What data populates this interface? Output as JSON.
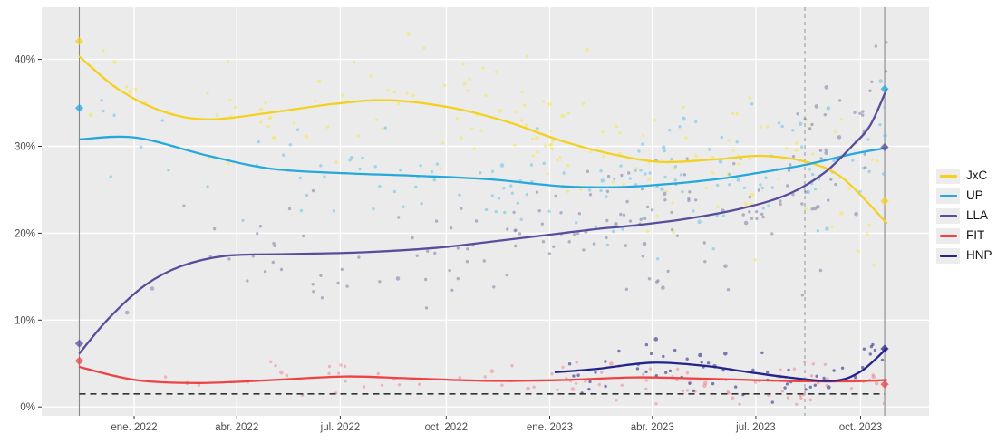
{
  "figure": {
    "background": "#ffffff",
    "panel_background": "#ebebeb",
    "gridline_color": "#ffffff",
    "axis_text_color": "#4d4d4d",
    "tick_color": "#333333"
  },
  "chart_data": {
    "type": "scatter",
    "title": "",
    "xlabel": "",
    "ylabel": "",
    "grid": true,
    "legend_position": "right",
    "x_axis": {
      "scale": "time (decimal year)",
      "range_years": [
        2021.79,
        2023.91
      ],
      "ticks": [
        {
          "label": "ene. 2022",
          "year": 2022.0
        },
        {
          "label": "abr. 2022",
          "year": 2022.247
        },
        {
          "label": "jul. 2022",
          "year": 2022.496
        },
        {
          "label": "oct. 2022",
          "year": 2022.751
        },
        {
          "label": "ene. 2023",
          "year": 2023.0
        },
        {
          "label": "abr. 2023",
          "year": 2023.247
        },
        {
          "label": "jul. 2023",
          "year": 2023.496
        },
        {
          "label": "oct. 2023",
          "year": 2023.748
        }
      ]
    },
    "y_axis": {
      "unit": "%",
      "range": [
        -1.0,
        46.0
      ],
      "ticks": [
        {
          "label": "0%",
          "value": 0
        },
        {
          "label": "10%",
          "value": 10
        },
        {
          "label": "20%",
          "value": 20
        },
        {
          "label": "30%",
          "value": 30
        },
        {
          "label": "40%",
          "value": 40
        }
      ]
    },
    "reference_lines": {
      "vertical": [
        {
          "year": 2021.868,
          "style": "solid",
          "color": "#8a8a8a"
        },
        {
          "year": 2023.614,
          "style": "dashed",
          "color": "#9e9e9e"
        },
        {
          "year": 2023.806,
          "style": "solid",
          "color": "#8a8a8a"
        }
      ],
      "horizontal": [
        {
          "value": 1.5,
          "style": "dashed",
          "color": "#333333"
        }
      ]
    },
    "series": [
      {
        "name": "JxC",
        "line_color": "#f3d11e",
        "point_color": "#f5e645",
        "point_opacity": 0.55,
        "scatter_points_approx": 150,
        "scatter_spread_pct": 2.9,
        "scatter_seed": 11,
        "scatter_late_bias": 0.62,
        "trend": [
          [
            2021.869,
            40.3
          ],
          [
            2021.961,
            36.6
          ],
          [
            2022.07,
            34.0
          ],
          [
            2022.179,
            33.1
          ],
          [
            2022.332,
            33.9
          ],
          [
            2022.484,
            34.9
          ],
          [
            2022.615,
            35.3
          ],
          [
            2022.768,
            34.4
          ],
          [
            2022.899,
            32.8
          ],
          [
            2023.03,
            30.6
          ],
          [
            2023.16,
            29.0
          ],
          [
            2023.269,
            28.2
          ],
          [
            2023.4,
            28.5
          ],
          [
            2023.509,
            28.9
          ],
          [
            2023.618,
            28.2
          ],
          [
            2023.706,
            26.3
          ],
          [
            2023.81,
            21.2
          ]
        ],
        "election_markers": [
          [
            2021.868,
            42.1
          ],
          [
            2023.806,
            23.7
          ]
        ]
      },
      {
        "name": "UP",
        "line_color": "#25a8dc",
        "point_color": "#5fc2e7",
        "point_opacity": 0.55,
        "scatter_points_approx": 150,
        "scatter_spread_pct": 2.6,
        "scatter_seed": 22,
        "scatter_late_bias": 0.62,
        "trend": [
          [
            2021.869,
            30.8
          ],
          [
            2022.004,
            31.0
          ],
          [
            2022.179,
            28.9
          ],
          [
            2022.332,
            27.4
          ],
          [
            2022.506,
            26.9
          ],
          [
            2022.68,
            26.6
          ],
          [
            2022.855,
            26.2
          ],
          [
            2023.03,
            25.4
          ],
          [
            2023.16,
            25.3
          ],
          [
            2023.269,
            25.6
          ],
          [
            2023.4,
            26.2
          ],
          [
            2023.509,
            27.0
          ],
          [
            2023.618,
            27.9
          ],
          [
            2023.727,
            29.1
          ],
          [
            2023.81,
            29.8
          ]
        ],
        "election_markers": [
          [
            2021.868,
            34.4
          ],
          [
            2023.806,
            36.6
          ]
        ]
      },
      {
        "name": "LLA",
        "line_color": "#584d9c",
        "point_color": "#76719d",
        "point_opacity": 0.5,
        "scatter_points_approx": 175,
        "scatter_spread_pct": 3.1,
        "scatter_seed": 33,
        "scatter_late_bias": 0.6,
        "trend": [
          [
            2021.869,
            6.2
          ],
          [
            2021.939,
            10.2
          ],
          [
            2022.026,
            14.0
          ],
          [
            2022.113,
            16.2
          ],
          [
            2022.222,
            17.4
          ],
          [
            2022.375,
            17.6
          ],
          [
            2022.55,
            17.8
          ],
          [
            2022.724,
            18.3
          ],
          [
            2022.855,
            19.0
          ],
          [
            2023.03,
            20.0
          ],
          [
            2023.117,
            20.5
          ],
          [
            2023.204,
            20.9
          ],
          [
            2023.335,
            21.7
          ],
          [
            2023.466,
            22.9
          ],
          [
            2023.575,
            24.5
          ],
          [
            2023.662,
            27.0
          ],
          [
            2023.727,
            30.0
          ],
          [
            2023.771,
            32.4
          ],
          [
            2023.81,
            36.5
          ]
        ],
        "election_markers": [
          [
            2021.868,
            7.3
          ],
          [
            2023.806,
            29.9
          ]
        ]
      },
      {
        "name": "FIT",
        "line_color": "#ee4245",
        "point_color": "#f2848f",
        "point_opacity": 0.55,
        "scatter_points_approx": 100,
        "scatter_spread_pct": 0.95,
        "scatter_seed": 44,
        "scatter_late_bias": 0.6,
        "trend": [
          [
            2021.869,
            4.6
          ],
          [
            2022.004,
            3.1
          ],
          [
            2022.157,
            2.75
          ],
          [
            2022.332,
            3.1
          ],
          [
            2022.506,
            3.5
          ],
          [
            2022.659,
            3.3
          ],
          [
            2022.855,
            3.0
          ],
          [
            2023.03,
            3.1
          ],
          [
            2023.204,
            3.4
          ],
          [
            2023.335,
            3.3
          ],
          [
            2023.487,
            3.1
          ],
          [
            2023.618,
            2.95
          ],
          [
            2023.727,
            2.95
          ],
          [
            2023.81,
            3.1
          ]
        ],
        "election_markers": [
          [
            2021.868,
            5.3
          ],
          [
            2023.806,
            2.6
          ]
        ]
      },
      {
        "name": "HNP",
        "line_color": "#23238c",
        "point_color": "#3b3b93",
        "point_opacity": 0.65,
        "scatter_points_approx": 60,
        "scatter_spread_pct": 1.05,
        "scatter_seed": 55,
        "scatter_late_bias": 0.85,
        "trend": [
          [
            2023.014,
            4.0
          ],
          [
            2023.117,
            4.4
          ],
          [
            2023.248,
            5.1
          ],
          [
            2023.379,
            4.7
          ],
          [
            2023.466,
            4.1
          ],
          [
            2023.575,
            3.4
          ],
          [
            2023.684,
            3.0
          ],
          [
            2023.749,
            4.1
          ],
          [
            2023.81,
            6.7
          ]
        ],
        "election_markers": [
          [
            2023.806,
            6.7
          ]
        ]
      }
    ]
  },
  "legend": {
    "items": [
      "JxC",
      "UP",
      "LLA",
      "FIT",
      "HNP"
    ]
  }
}
